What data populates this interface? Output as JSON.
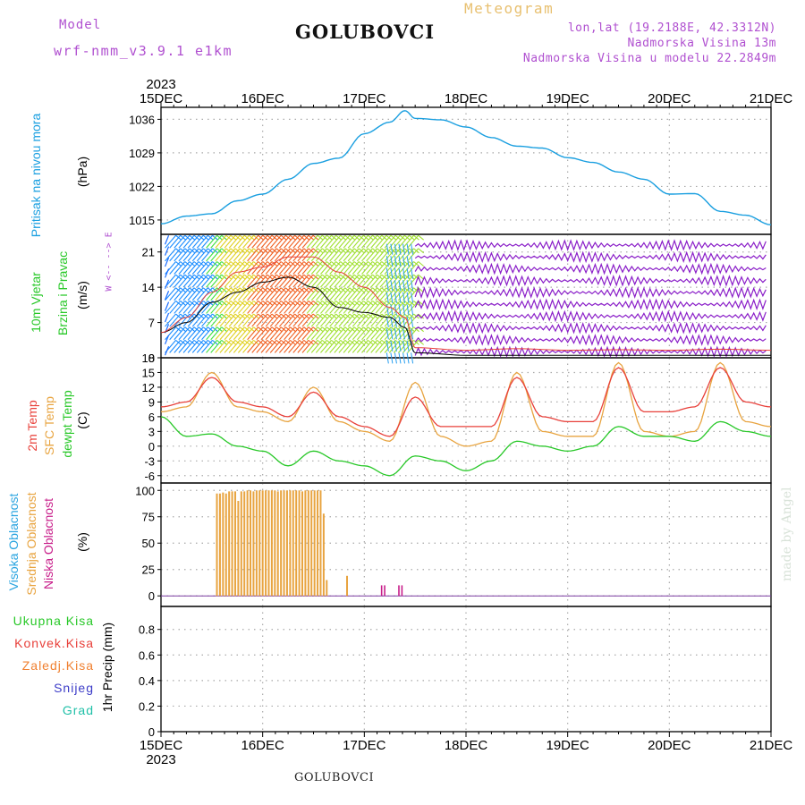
{
  "header": {
    "model_label": "Model",
    "model_name": "wrf-nmm_v3.9.1 e1km",
    "station": "GOLUBOVCI",
    "meteogram": "Meteogram",
    "lonlat": "lon,lat (19.2188E, 42.3312N)",
    "elev": "Nadmorska Visina 13m",
    "elev_model": "Nadmorska Visina u modelu 22.2849m",
    "footer_station": "GOLUBOVCI",
    "credit": "made by Angel"
  },
  "time_axis": {
    "year_top": "2023",
    "year_bottom": "2023",
    "labels": [
      "15DEC",
      "16DEC",
      "17DEC",
      "18DEC",
      "19DEC",
      "20DEC",
      "21DEC"
    ]
  },
  "panel_labels": {
    "pressure": "Pritisak na nivou mora",
    "pressure_unit": "(hPa)",
    "wind1": "10m Vjetar",
    "wind2": "Brzina i Pravac",
    "wind_unit": "(m/s)",
    "compass": "W <-- --> E",
    "temp_2m": "2m Temp",
    "temp_sfc": "SFC Temp",
    "temp_dew": "dewpt Temp",
    "temp_unit": "(C)",
    "cloud_high": "Visoka Oblacnost",
    "cloud_mid": "Srednja Oblacnost",
    "cloud_low": "Niska Oblacnost",
    "cloud_unit": "(%)",
    "precip_total": "Ukupna Kisa",
    "precip_conv": "Konvek.Kisa",
    "precip_frz": "Zaledj.Kisa",
    "precip_snow": "Snijeg",
    "precip_hail": "Grad",
    "precip_unit": "1hr Precip (mm)"
  },
  "colors": {
    "pressure": "#1a9fe0",
    "wind_speed": "#000000",
    "wind_gust": "#e8403a",
    "temp_2m": "#e8403a",
    "temp_sfc": "#e8a440",
    "temp_dew": "#28c828",
    "cloud_high": "#2aa4e0",
    "cloud_mid": "#e8a440",
    "cloud_low": "#c81e8a",
    "precip_total": "#28c828",
    "precip_conv": "#e8403a",
    "precip_frz": "#f08030",
    "precip_snow": "#3c3cc8",
    "precip_hail": "#20c0a8",
    "label_purple": "#b050d0",
    "label_gold": "#e8c070"
  },
  "chart_data": [
    {
      "type": "line",
      "name": "pressure",
      "ylabel": "(hPa)",
      "ylim": [
        1012,
        1038.5
      ],
      "yticks": [
        1015,
        1022,
        1029,
        1036
      ],
      "grid": true,
      "x": [
        0,
        0.25,
        0.5,
        0.75,
        1.0,
        1.25,
        1.5,
        1.75,
        2.0,
        2.25,
        2.4,
        2.5,
        2.75,
        3.0,
        3.25,
        3.5,
        3.75,
        4.0,
        4.25,
        4.5,
        4.75,
        5.0,
        5.25,
        5.5,
        5.75,
        6.0
      ],
      "series": [
        {
          "values": [
            1014.2,
            1015.8,
            1016.3,
            1019.0,
            1020.4,
            1023.5,
            1026.8,
            1027.9,
            1033.0,
            1035.4,
            1037.8,
            1036.2,
            1035.9,
            1034.4,
            1032.2,
            1030.4,
            1030.0,
            1028.0,
            1027.0,
            1025.0,
            1023.5,
            1020.4,
            1020.5,
            1016.8,
            1016.0,
            1014.0
          ]
        }
      ]
    },
    {
      "type": "line",
      "name": "wind",
      "ylabel": "(m/s)",
      "ylim": [
        0,
        24.5
      ],
      "yticks": [
        0,
        7,
        14,
        21
      ],
      "grid": true,
      "x": [
        0,
        0.25,
        0.5,
        0.75,
        1.0,
        1.25,
        1.5,
        1.75,
        2.0,
        2.25,
        2.4,
        2.5,
        3.0,
        3.5,
        4.0,
        4.5,
        5.0,
        5.5,
        6.0
      ],
      "series": [
        {
          "values": [
            5,
            7,
            11,
            13,
            15,
            16,
            14,
            10,
            9,
            8,
            6,
            1,
            0.5,
            0.5,
            0.5,
            0.5,
            0.5,
            0.5,
            0.5
          ]
        },
        {
          "values": [
            5,
            8,
            13,
            17,
            18,
            20,
            20,
            17,
            14,
            10,
            8,
            2,
            1.5,
            1.8,
            1.5,
            1.6,
            1.5,
            1.7,
            1.5
          ]
        }
      ]
    },
    {
      "type": "line",
      "name": "temperature",
      "ylabel": "(C)",
      "ylim": [
        -7.5,
        18
      ],
      "yticks": [
        -6,
        -3,
        0,
        3,
        6,
        9,
        12,
        15,
        18
      ],
      "grid": true,
      "x": [
        0,
        0.25,
        0.5,
        0.75,
        1.0,
        1.25,
        1.5,
        1.75,
        2.0,
        2.25,
        2.5,
        2.75,
        3.0,
        3.25,
        3.5,
        3.75,
        4.0,
        4.25,
        4.5,
        4.75,
        5.0,
        5.25,
        5.5,
        5.75,
        6.0
      ],
      "series": [
        {
          "values": [
            8,
            9,
            14,
            9,
            8,
            6,
            11,
            6,
            4,
            2,
            10,
            4,
            4,
            4,
            14,
            6,
            5,
            5,
            16,
            7,
            7,
            8,
            16,
            9,
            8
          ]
        },
        {
          "values": [
            7,
            8,
            15,
            8,
            7,
            5,
            12,
            5,
            3,
            1,
            13,
            2,
            0,
            1,
            15,
            3,
            2,
            2,
            17,
            3,
            2,
            3,
            17,
            5,
            4
          ]
        },
        {
          "values": [
            6,
            2,
            2.5,
            0,
            -1,
            -4,
            -1,
            -3,
            -4,
            -6,
            -2,
            -3,
            -5,
            -3,
            1,
            0,
            -1,
            0,
            4,
            2,
            2,
            1,
            5,
            3,
            2
          ]
        }
      ]
    },
    {
      "type": "bar",
      "name": "cloud",
      "ylabel": "(%)",
      "ylim": [
        -10,
        107
      ],
      "yticks": [
        0,
        25,
        50,
        75,
        100
      ],
      "grid": true,
      "mid_bars": {
        "x": [
          0.55,
          0.58,
          0.61,
          0.64,
          0.67,
          0.7,
          0.73,
          0.76,
          0.79,
          0.82,
          0.85,
          0.88,
          0.91,
          0.94,
          0.97,
          1.0,
          1.03,
          1.06,
          1.09,
          1.12,
          1.15,
          1.18,
          1.21,
          1.24,
          1.27,
          1.3,
          1.33,
          1.36,
          1.39,
          1.42,
          1.45,
          1.48,
          1.51,
          1.54,
          1.57,
          1.6,
          1.63,
          1.83
        ],
        "values": [
          97,
          97,
          98,
          97,
          99,
          99,
          99,
          90,
          99,
          99,
          100,
          100,
          99,
          100,
          100,
          100,
          100,
          100,
          100,
          100,
          99,
          100,
          100,
          100,
          100,
          100,
          100,
          100,
          99,
          100,
          100,
          100,
          100,
          100,
          100,
          78,
          15,
          19
        ]
      },
      "low_bars": {
        "x": [
          2.17,
          2.2,
          2.34,
          2.37
        ],
        "values": [
          10,
          10,
          10,
          10
        ]
      }
    },
    {
      "type": "bar",
      "name": "precip",
      "ylabel": "1hr Precip (mm)",
      "ylim": [
        0,
        0.98
      ],
      "yticks": [
        0,
        0.2,
        0.4,
        0.6,
        0.8
      ],
      "grid": true,
      "values": []
    }
  ]
}
